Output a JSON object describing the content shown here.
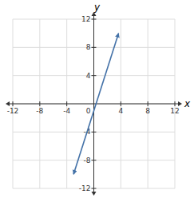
{
  "chart_data": {
    "type": "line",
    "xlabel": "x",
    "ylabel": "y",
    "x": [
      -3.0,
      3.667
    ],
    "series": [
      {
        "values": [
          -10.0,
          10.0
        ],
        "color": "#4472a8",
        "marker": "arrow"
      }
    ],
    "xlim": [
      -12,
      12
    ],
    "ylim": [
      -12,
      12
    ],
    "xticks": [
      -12,
      -8,
      -4,
      0,
      4,
      8,
      12
    ],
    "yticks": [
      -12,
      -8,
      -4,
      0,
      4,
      8,
      12
    ],
    "grid": true
  }
}
